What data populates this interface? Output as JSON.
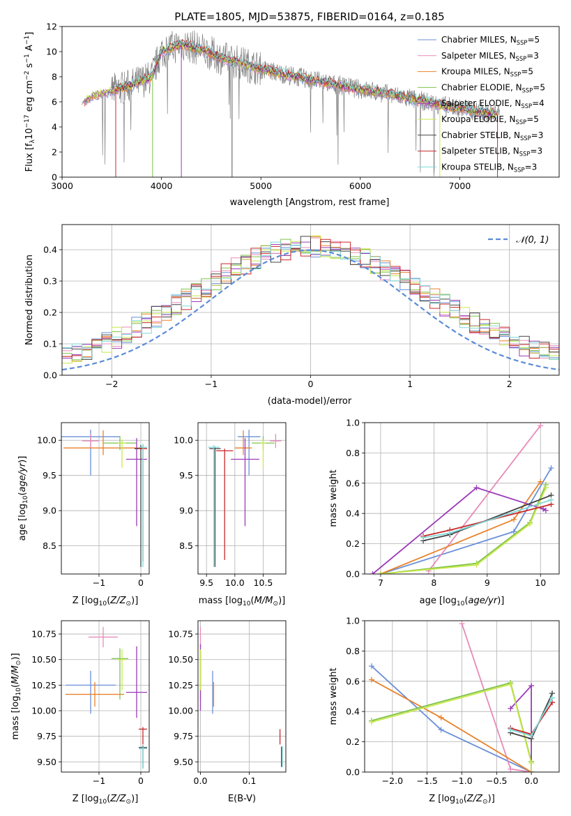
{
  "title": "PLATE=1805, MJD=53875, FIBERID=0164, z=0.185",
  "colors": {
    "Chabrier MILES": "#6a8fd8",
    "Salpeter MILES": "#e88ab8",
    "Kroupa MILES": "#e8822a",
    "Chabrier ELODIE": "#7ec24a",
    "Salpeter ELODIE": "#9b3ab8",
    "Kroupa ELODIE": "#c8e84a",
    "Chabrier STELIB": "#444444",
    "Salpeter STELIB": "#c8282a",
    "Kroupa STELIB": "#80d8d8",
    "normal": "#5b8bd6",
    "data": "#808080"
  },
  "chart_data": [
    {
      "id": "spectrum",
      "type": "line",
      "title": "PLATE=1805, MJD=53875, FIBERID=0164, z=0.185",
      "xlabel": "wavelength [Angstrom, rest frame]",
      "ylabel_main": "Flux [f",
      "ylabel_sub": "λ",
      "ylabel_rest": "10",
      "ylabel_tail": " erg cm",
      "ylabel_tail2": " s",
      "ylabel_tail3": " A",
      "xlim": [
        3000,
        8000
      ],
      "ylim": [
        0,
        12
      ],
      "xticks": [
        3000,
        4000,
        5000,
        6000,
        7000
      ],
      "yticks": [
        0,
        2,
        4,
        6,
        8,
        10,
        12
      ],
      "legend": [
        {
          "label": "Chabrier MILES, N",
          "sub": "SSP",
          "val": "=5",
          "key": "Chabrier MILES"
        },
        {
          "label": "Salpeter MILES, N",
          "sub": "SSP",
          "val": "=3",
          "key": "Salpeter MILES"
        },
        {
          "label": "Kroupa MILES, N",
          "sub": "SSP",
          "val": "=5",
          "key": "Kroupa MILES"
        },
        {
          "label": "Chabrier ELODIE, N",
          "sub": "SSP",
          "val": "=5",
          "key": "Chabrier ELODIE"
        },
        {
          "label": "Salpeter ELODIE, N",
          "sub": "SSP",
          "val": "=4",
          "key": "Salpeter ELODIE"
        },
        {
          "label": "Kroupa ELODIE, N",
          "sub": "SSP",
          "val": "=5",
          "key": "Kroupa ELODIE"
        },
        {
          "label": "Chabrier STELIB, N",
          "sub": "SSP",
          "val": "=3",
          "key": "Chabrier STELIB"
        },
        {
          "label": "Salpeter STELIB, N",
          "sub": "SSP",
          "val": "=3",
          "key": "Salpeter STELIB"
        },
        {
          "label": "Kroupa STELIB, N",
          "sub": "SSP",
          "val": "=3",
          "key": "Kroupa STELIB"
        }
      ],
      "continuum": [
        [
          3200,
          5.9
        ],
        [
          3300,
          6.5
        ],
        [
          3500,
          6.9
        ],
        [
          3700,
          7.3
        ],
        [
          3900,
          8.0
        ],
        [
          4000,
          10.0
        ],
        [
          4200,
          10.6
        ],
        [
          4400,
          10.2
        ],
        [
          4600,
          9.5
        ],
        [
          4800,
          9.1
        ],
        [
          5000,
          8.6
        ],
        [
          5300,
          8.1
        ],
        [
          5600,
          7.6
        ],
        [
          6000,
          7.0
        ],
        [
          6300,
          6.6
        ],
        [
          6600,
          6.1
        ],
        [
          6900,
          5.6
        ],
        [
          7200,
          5.2
        ],
        [
          7400,
          5.0
        ]
      ]
    },
    {
      "id": "residuals",
      "type": "line",
      "xlabel": "(data-model)/error",
      "ylabel": "Normed distribution",
      "xlim": [
        -2.5,
        2.5
      ],
      "ylim": [
        0,
        0.48
      ],
      "xticks": [
        -2,
        -1,
        0,
        1,
        2
      ],
      "yticks": [
        0.0,
        0.1,
        0.2,
        0.3,
        0.4
      ],
      "legend_label": "𝒩(0, 1)",
      "hist_envelope": [
        0.04,
        0.06,
        0.07,
        0.09,
        0.12,
        0.15,
        0.18,
        0.22,
        0.27,
        0.31,
        0.35,
        0.38,
        0.39,
        0.38,
        0.35,
        0.31,
        0.27,
        0.22,
        0.18,
        0.14,
        0.11,
        0.08,
        0.06,
        0.05,
        0.04
      ]
    },
    {
      "id": "age-vs-z",
      "type": "scatter",
      "xlabel": "Z [log",
      "ylabel": "age  [log",
      "xlim": [
        -1.9,
        0.2
      ],
      "ylim": [
        8.1,
        10.25
      ],
      "xticks": [
        -1,
        0
      ],
      "yticks": [
        8.5,
        9.0,
        9.5,
        10.0
      ],
      "points": [
        {
          "key": "Chabrier MILES",
          "x": -1.2,
          "y": 10.05,
          "xerr": 0.7,
          "yerr_lo": 0.55,
          "yerr_hi": 0.1
        },
        {
          "key": "Salpeter MILES",
          "x": -1.2,
          "y": 9.99,
          "xerr": 0.2,
          "yerr_lo": 0.1,
          "yerr_hi": 0.1
        },
        {
          "key": "Kroupa MILES",
          "x": -0.9,
          "y": 9.89,
          "xerr": 0.95,
          "yerr_lo": 0.1,
          "yerr_hi": 0.25
        },
        {
          "key": "Chabrier ELODIE",
          "x": -0.5,
          "y": 9.96,
          "xerr": 0.4,
          "yerr_lo": 0.1,
          "yerr_hi": 0.1
        },
        {
          "key": "Salpeter ELODIE",
          "x": -0.1,
          "y": 9.73,
          "xerr": 0.25,
          "yerr_lo": 0.95,
          "yerr_hi": 0.3
        },
        {
          "key": "Kroupa ELODIE",
          "x": -0.45,
          "y": 9.96,
          "xerr": 0.1,
          "yerr_lo": 0.35,
          "yerr_hi": 0.05
        },
        {
          "key": "Chabrier STELIB",
          "x": 0.0,
          "y": 9.88,
          "xerr": 0.15,
          "yerr_lo": 1.68,
          "yerr_hi": 0.05
        },
        {
          "key": "Salpeter STELIB",
          "x": 0.05,
          "y": 9.88,
          "xerr": 0.1,
          "yerr_lo": 1.6,
          "yerr_hi": 0.05
        },
        {
          "key": "Kroupa STELIB",
          "x": 0.05,
          "y": 9.9,
          "xerr": 0.1,
          "yerr_lo": 1.7,
          "yerr_hi": 0.05
        }
      ]
    },
    {
      "id": "age-vs-mass",
      "type": "scatter",
      "xlabel": "mass [log",
      "xlim": [
        9.35,
        10.9
      ],
      "ylim": [
        8.1,
        10.25
      ],
      "xticks": [
        9.5,
        10.0,
        10.5
      ],
      "yticks": [
        8.5,
        9.0,
        9.5,
        10.0
      ],
      "points": [
        {
          "key": "Chabrier MILES",
          "x": 10.25,
          "y": 10.05,
          "xerr": 0.2,
          "yerr_lo": 0.55,
          "yerr_hi": 0.1
        },
        {
          "key": "Salpeter MILES",
          "x": 10.72,
          "y": 9.99,
          "xerr": 0.1,
          "yerr_lo": 0.1,
          "yerr_hi": 0.1
        },
        {
          "key": "Kroupa MILES",
          "x": 10.15,
          "y": 9.89,
          "xerr": 0.15,
          "yerr_lo": 0.1,
          "yerr_hi": 0.25
        },
        {
          "key": "Chabrier ELODIE",
          "x": 10.5,
          "y": 9.96,
          "xerr": 0.2,
          "yerr_lo": 0.1,
          "yerr_hi": 0.1
        },
        {
          "key": "Salpeter ELODIE",
          "x": 10.18,
          "y": 9.73,
          "xerr": 0.25,
          "yerr_lo": 0.95,
          "yerr_hi": 0.3
        },
        {
          "key": "Kroupa ELODIE",
          "x": 10.5,
          "y": 9.96,
          "xerr": 0.05,
          "yerr_lo": 0.35,
          "yerr_hi": 0.05
        },
        {
          "key": "Chabrier STELIB",
          "x": 9.65,
          "y": 9.88,
          "xerr": 0.1,
          "yerr_lo": 1.68,
          "yerr_hi": 0.03
        },
        {
          "key": "Salpeter STELIB",
          "x": 9.82,
          "y": 9.85,
          "xerr": 0.15,
          "yerr_lo": 1.55,
          "yerr_hi": 0.03
        },
        {
          "key": "Kroupa STELIB",
          "x": 9.63,
          "y": 9.9,
          "xerr": 0.1,
          "yerr_lo": 1.7,
          "yerr_hi": 0.03
        }
      ]
    },
    {
      "id": "weight-vs-age",
      "type": "line",
      "xlabel": "age  [log",
      "ylabel": "mass weight",
      "xlim": [
        6.7,
        10.35
      ],
      "ylim": [
        0,
        1
      ],
      "xticks": [
        7,
        8,
        9,
        10
      ],
      "yticks": [
        0.0,
        0.2,
        0.4,
        0.6,
        0.8,
        1.0
      ],
      "series": [
        {
          "key": "Chabrier MILES",
          "x": [
            7.0,
            9.5,
            10.2
          ],
          "y": [
            0.0,
            0.28,
            0.7
          ]
        },
        {
          "key": "Salpeter MILES",
          "x": [
            7.9,
            10.0
          ],
          "y": [
            0.02,
            0.98
          ]
        },
        {
          "key": "Kroupa MILES",
          "x": [
            7.0,
            9.5,
            10.0
          ],
          "y": [
            0.0,
            0.36,
            0.61
          ]
        },
        {
          "key": "Chabrier ELODIE",
          "x": [
            7.0,
            8.8,
            9.8,
            10.1
          ],
          "y": [
            0.0,
            0.07,
            0.34,
            0.59
          ]
        },
        {
          "key": "Salpeter ELODIE",
          "x": [
            6.85,
            8.8,
            10.05,
            10.1
          ],
          "y": [
            0.0,
            0.57,
            0.43,
            0.42
          ]
        },
        {
          "key": "Kroupa ELODIE",
          "x": [
            7.0,
            8.8,
            9.8,
            10.1
          ],
          "y": [
            0.0,
            0.06,
            0.33,
            0.57
          ]
        },
        {
          "key": "Chabrier STELIB",
          "x": [
            7.8,
            8.3,
            10.2
          ],
          "y": [
            0.22,
            0.26,
            0.52
          ]
        },
        {
          "key": "Salpeter STELIB",
          "x": [
            7.8,
            8.3,
            10.2
          ],
          "y": [
            0.25,
            0.29,
            0.46
          ]
        },
        {
          "key": "Kroupa STELIB",
          "x": [
            7.8,
            8.3,
            10.2
          ],
          "y": [
            0.24,
            0.27,
            0.49
          ]
        }
      ]
    },
    {
      "id": "mass-vs-z",
      "type": "scatter",
      "xlabel": "Z [log",
      "ylabel": "mass [log",
      "xlim": [
        -1.9,
        0.2
      ],
      "ylim": [
        9.4,
        10.88
      ],
      "xticks": [
        -1,
        0
      ],
      "yticks": [
        9.5,
        9.75,
        10.0,
        10.25,
        10.5,
        10.75
      ],
      "points": [
        {
          "key": "Chabrier MILES",
          "x": -1.2,
          "y": 10.25,
          "xerr": 0.6,
          "yerr_lo": 0.28,
          "yerr_hi": 0.14
        },
        {
          "key": "Salpeter MILES",
          "x": -0.9,
          "y": 10.72,
          "xerr": 0.35,
          "yerr_lo": 0.1,
          "yerr_hi": 0.1
        },
        {
          "key": "Kroupa MILES",
          "x": -1.1,
          "y": 10.16,
          "xerr": 0.7,
          "yerr_lo": 0.12,
          "yerr_hi": 0.12
        },
        {
          "key": "Chabrier ELODIE",
          "x": -0.5,
          "y": 10.51,
          "xerr": 0.2,
          "yerr_lo": 0.4,
          "yerr_hi": 0.1
        },
        {
          "key": "Salpeter ELODIE",
          "x": -0.1,
          "y": 10.18,
          "xerr": 0.25,
          "yerr_lo": 0.25,
          "yerr_hi": 0.45
        },
        {
          "key": "Kroupa ELODIE",
          "x": -0.45,
          "y": 10.5,
          "xerr": 0.1,
          "yerr_lo": 0.3,
          "yerr_hi": 0.1
        },
        {
          "key": "Chabrier STELIB",
          "x": 0.05,
          "y": 9.64,
          "xerr": 0.1,
          "yerr_lo": 0.2,
          "yerr_hi": 0.02
        },
        {
          "key": "Salpeter STELIB",
          "x": 0.05,
          "y": 9.82,
          "xerr": 0.1,
          "yerr_lo": 0.15,
          "yerr_hi": 0.02
        },
        {
          "key": "Kroupa STELIB",
          "x": 0.05,
          "y": 9.63,
          "xerr": 0.1,
          "yerr_lo": 0.2,
          "yerr_hi": 0.02
        }
      ]
    },
    {
      "id": "mass-vs-ebv",
      "type": "scatter",
      "xlabel": "E(B-V)",
      "xlim": [
        -0.005,
        0.175
      ],
      "ylim": [
        9.4,
        10.88
      ],
      "xticks": [
        0.0,
        0.1
      ],
      "yticks": [
        9.5,
        9.75,
        10.0,
        10.25,
        10.5,
        10.75
      ],
      "points": [
        {
          "key": "Chabrier MILES",
          "x": 0.025,
          "y": 10.25,
          "xerr": 0.0,
          "yerr_lo": 0.28,
          "yerr_hi": 0.14
        },
        {
          "key": "Salpeter MILES",
          "x": 0.0,
          "y": 10.72,
          "xerr": 0.0,
          "yerr_lo": 0.1,
          "yerr_hi": 0.1
        },
        {
          "key": "Kroupa MILES",
          "x": 0.027,
          "y": 10.16,
          "xerr": 0.0,
          "yerr_lo": 0.12,
          "yerr_hi": 0.12
        },
        {
          "key": "Chabrier ELODIE",
          "x": 0.0,
          "y": 10.51,
          "xerr": 0.0,
          "yerr_lo": 0.4,
          "yerr_hi": 0.1
        },
        {
          "key": "Salpeter ELODIE",
          "x": 0.0,
          "y": 10.45,
          "xerr": 0.0,
          "yerr_lo": 0.45,
          "yerr_hi": 0.2
        },
        {
          "key": "Kroupa ELODIE",
          "x": 0.0,
          "y": 10.5,
          "xerr": 0.0,
          "yerr_lo": 0.3,
          "yerr_hi": 0.1
        },
        {
          "key": "Chabrier STELIB",
          "x": 0.166,
          "y": 9.6,
          "xerr": 0.0,
          "yerr_lo": 0.15,
          "yerr_hi": 0.05
        },
        {
          "key": "Salpeter STELIB",
          "x": 0.163,
          "y": 9.75,
          "xerr": 0.0,
          "yerr_lo": 0.08,
          "yerr_hi": 0.07
        },
        {
          "key": "Kroupa STELIB",
          "x": 0.168,
          "y": 9.6,
          "xerr": 0.0,
          "yerr_lo": 0.15,
          "yerr_hi": 0.05
        }
      ]
    },
    {
      "id": "weight-vs-z",
      "type": "line",
      "xlabel": "Z [log",
      "ylabel": "mass weight",
      "xlim": [
        -2.4,
        0.4
      ],
      "ylim": [
        0,
        1
      ],
      "xticks": [
        -2.0,
        -1.5,
        -1.0,
        -0.5,
        0.0
      ],
      "yticks": [
        0.0,
        0.2,
        0.4,
        0.6,
        0.8,
        1.0
      ],
      "series": [
        {
          "key": "Chabrier MILES",
          "x": [
            -2.3,
            -1.3,
            0.0
          ],
          "y": [
            0.7,
            0.28,
            0.0
          ]
        },
        {
          "key": "Salpeter MILES",
          "x": [
            -1.0,
            -0.3,
            0.0
          ],
          "y": [
            0.98,
            0.02,
            0.0
          ]
        },
        {
          "key": "Kroupa MILES",
          "x": [
            -2.3,
            -1.3,
            0.0
          ],
          "y": [
            0.61,
            0.36,
            0.0
          ]
        },
        {
          "key": "Chabrier ELODIE",
          "x": [
            -2.3,
            -0.3,
            0.0,
            0.0
          ],
          "y": [
            0.34,
            0.59,
            0.07,
            0.0
          ]
        },
        {
          "key": "Salpeter ELODIE",
          "x": [
            -0.3,
            0.0,
            0.0
          ],
          "y": [
            0.42,
            0.57,
            0.0
          ]
        },
        {
          "key": "Kroupa ELODIE",
          "x": [
            -2.3,
            -0.3,
            0.0,
            0.0
          ],
          "y": [
            0.33,
            0.58,
            0.06,
            0.0
          ]
        },
        {
          "key": "Chabrier STELIB",
          "x": [
            -0.3,
            0.0,
            0.3
          ],
          "y": [
            0.26,
            0.22,
            0.52
          ]
        },
        {
          "key": "Salpeter STELIB",
          "x": [
            -0.3,
            0.0,
            0.3
          ],
          "y": [
            0.29,
            0.25,
            0.46
          ]
        },
        {
          "key": "Kroupa STELIB",
          "x": [
            -0.3,
            0.0,
            0.3
          ],
          "y": [
            0.28,
            0.24,
            0.49
          ]
        }
      ]
    }
  ]
}
